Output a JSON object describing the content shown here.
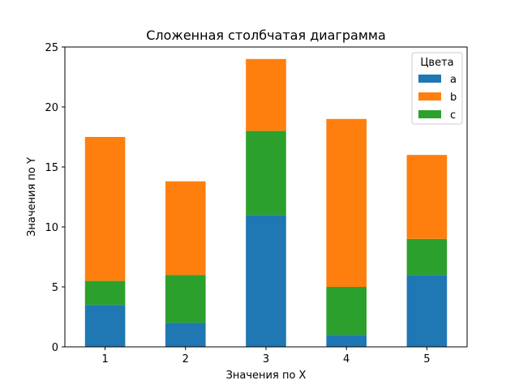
{
  "chart_data": {
    "type": "bar",
    "stacked": true,
    "title": "Сложенная столбчатая диаграмма",
    "xlabel": "Значения по X",
    "ylabel": "Значения по Y",
    "categories": [
      "1",
      "2",
      "3",
      "4",
      "5"
    ],
    "series": [
      {
        "name": "a",
        "color": "#1f77b4",
        "values": [
          3.5,
          2,
          11,
          1,
          6
        ]
      },
      {
        "name": "b",
        "color": "#ff7f0e",
        "values": [
          12,
          7.8,
          6,
          14,
          7
        ]
      },
      {
        "name": "c",
        "color": "#2ca02c",
        "values": [
          2,
          4,
          7,
          4,
          3
        ]
      }
    ],
    "stack_order": [
      "a",
      "c",
      "b"
    ],
    "ylim": [
      0,
      25
    ],
    "yticks": [
      "0",
      "5",
      "10",
      "15",
      "20",
      "25"
    ],
    "grid": false,
    "legend": {
      "title": "Цвета",
      "placement": "top-right"
    }
  }
}
